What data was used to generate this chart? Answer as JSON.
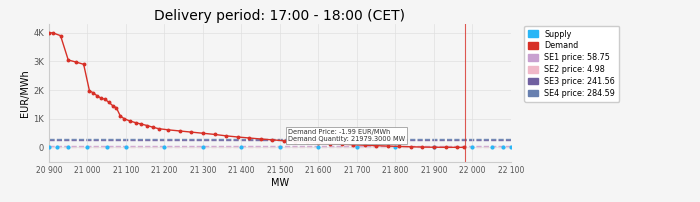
{
  "title": "Delivery period: 17:00 - 18:00 (CET)",
  "xlabel": "MW",
  "ylabel": "EUR/MWh",
  "xlim": [
    20900,
    22100
  ],
  "ylim": [
    -500,
    4300
  ],
  "yticks": [
    0,
    1000,
    2000,
    3000,
    4000
  ],
  "ytick_labels": [
    "0",
    "1K",
    "2K",
    "3K",
    "4K"
  ],
  "xticks": [
    20900,
    21000,
    21100,
    21200,
    21300,
    21400,
    21500,
    21600,
    21700,
    21800,
    21900,
    22000,
    22100
  ],
  "xtick_labels": [
    "20 900",
    "21 000",
    "21 100",
    "21 200",
    "21 300",
    "21 400",
    "21 500",
    "21 600",
    "21 700",
    "21 800",
    "21 900",
    "22 000",
    "22 100"
  ],
  "demand_color": "#d73027",
  "supply_color": "#29b6f6",
  "se1_color": "#c8a0d0",
  "se2_color": "#f0b8c8",
  "se3_color": "#7060a0",
  "se4_color": "#6880b0",
  "se1_price": 58.75,
  "se2_price": 4.98,
  "se3_price": 241.56,
  "se4_price": 284.59,
  "demand_price_annotation": "Demand Price: -1.99 EUR/MWh",
  "demand_quantity_annotation": "Demand Quantity: 21979.3000 MW",
  "background_color": "#f5f5f5",
  "grid_color": "#e0e0e0",
  "demand_x": [
    20900,
    20910,
    20930,
    20950,
    20970,
    20990,
    21005,
    21015,
    21025,
    21035,
    21045,
    21055,
    21065,
    21075,
    21085,
    21095,
    21110,
    21125,
    21140,
    21155,
    21170,
    21185,
    21210,
    21240,
    21270,
    21300,
    21330,
    21360,
    21390,
    21420,
    21450,
    21480,
    21510,
    21540,
    21570,
    21600,
    21630,
    21660,
    21690,
    21720,
    21750,
    21780,
    21810,
    21840,
    21870,
    21900,
    21930,
    21960,
    21979
  ],
  "demand_y": [
    4000,
    4000,
    3900,
    3050,
    2980,
    2900,
    1980,
    1900,
    1800,
    1720,
    1680,
    1580,
    1460,
    1380,
    1100,
    1000,
    920,
    860,
    810,
    760,
    700,
    650,
    610,
    570,
    530,
    490,
    450,
    400,
    360,
    325,
    290,
    260,
    230,
    200,
    175,
    150,
    128,
    108,
    90,
    73,
    57,
    43,
    30,
    18,
    8,
    2,
    -0.5,
    -1.5,
    -1.99
  ],
  "supply_x": [
    20900,
    20920,
    20950,
    21000,
    21050,
    21100,
    21200,
    21300,
    21400,
    21500,
    21600,
    21700,
    21800,
    21900,
    22000,
    22050,
    22080,
    22100
  ],
  "supply_y": [
    0,
    0,
    0,
    0,
    0,
    0,
    0,
    0,
    0,
    0,
    0,
    0,
    0,
    0,
    0,
    0,
    0,
    0
  ],
  "legend_labels": [
    "Supply",
    "Demand",
    "SE1 price: 58.75",
    "SE2 price: 4.98",
    "SE3 price: 241.56",
    "SE4 price: 284.59"
  ]
}
